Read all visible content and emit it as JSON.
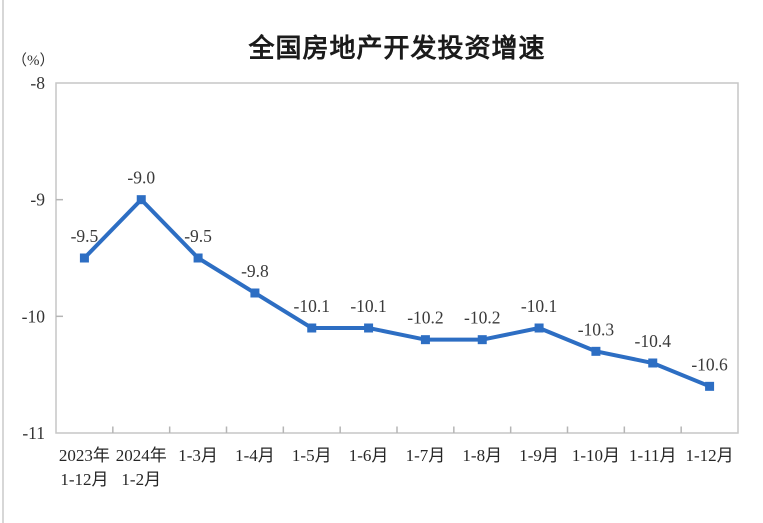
{
  "chart_data": {
    "type": "line",
    "title": "全国房地产开发投资增速",
    "unit": "（%）",
    "categories": [
      [
        "2023年",
        "1-12月"
      ],
      [
        "2024年",
        "1-2月"
      ],
      [
        "1-3月"
      ],
      [
        "1-4月"
      ],
      [
        "1-5月"
      ],
      [
        "1-6月"
      ],
      [
        "1-7月"
      ],
      [
        "1-8月"
      ],
      [
        "1-9月"
      ],
      [
        "1-10月"
      ],
      [
        "1-11月"
      ],
      [
        "1-12月"
      ]
    ],
    "series": [
      {
        "name": "全国房地产开发投资增速",
        "values": [
          -9.5,
          -9.0,
          -9.5,
          -9.8,
          -10.1,
          -10.1,
          -10.2,
          -10.2,
          -10.1,
          -10.3,
          -10.4,
          -10.6
        ],
        "point_labels": [
          "-9.5",
          "-9.0",
          "-9.5",
          "-9.8",
          "-10.1",
          "-10.1",
          "-10.2",
          "-10.2",
          "-10.1",
          "-10.3",
          "-10.4",
          "-10.6"
        ]
      }
    ],
    "ylim": [
      -11,
      -8
    ],
    "yticks": [
      {
        "value": -8,
        "label": "-8"
      },
      {
        "value": -9,
        "label": "-9"
      },
      {
        "value": -10,
        "label": "-10"
      },
      {
        "value": -11,
        "label": "-11"
      }
    ],
    "grid": false,
    "legend": "none",
    "marker": "square",
    "colors": {
      "line": "#2D6EC3",
      "marker": "#2D6EC3",
      "point_label": "#3a3a3a",
      "axis_frame": "#c6c6c6",
      "tick": "#b5b5b5",
      "axis_text": "#333333",
      "x_label_text": "#262626",
      "title_text": "#1b1b1b",
      "page_edge": "#d7d7d7"
    }
  }
}
